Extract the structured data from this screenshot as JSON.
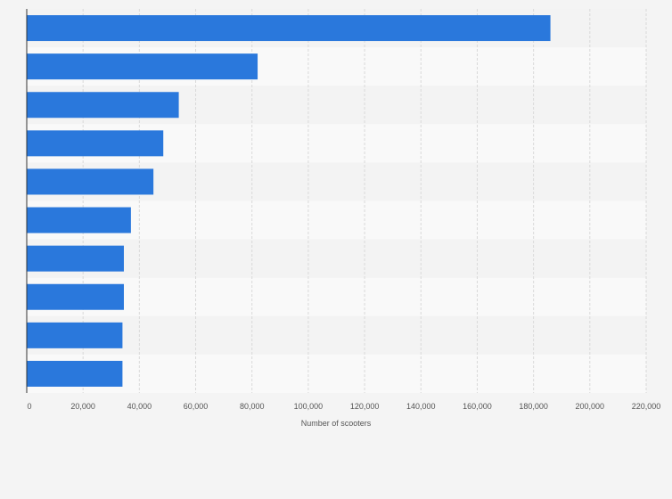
{
  "chart_data": {
    "type": "bar",
    "orientation": "horizontal",
    "categories": [
      "",
      "",
      "",
      "",
      "",
      "",
      "",
      "",
      "",
      ""
    ],
    "values": [
      186000,
      82000,
      54000,
      48500,
      45000,
      37000,
      34500,
      34500,
      34000,
      34000
    ],
    "xlim": [
      0,
      220000
    ],
    "xticks": [
      0,
      20000,
      40000,
      60000,
      80000,
      100000,
      120000,
      140000,
      160000,
      180000,
      200000,
      220000
    ],
    "xtick_labels": [
      "0",
      "20,000",
      "40,000",
      "60,000",
      "80,000",
      "100,000",
      "120,000",
      "140,000",
      "160,000",
      "180,000",
      "200,000",
      "220,000"
    ],
    "xlabel": "Number of scooters",
    "ylabel": "",
    "title": "",
    "grid": true,
    "legend": "none",
    "colors": {
      "bar": "#2a78dc",
      "band_light": "#f9f9f9",
      "band_dark": "#f3f3f3",
      "grid": "#d9d9d9",
      "axis": "#333333",
      "tick_text": "#555555",
      "background": "#f4f4f4"
    }
  }
}
